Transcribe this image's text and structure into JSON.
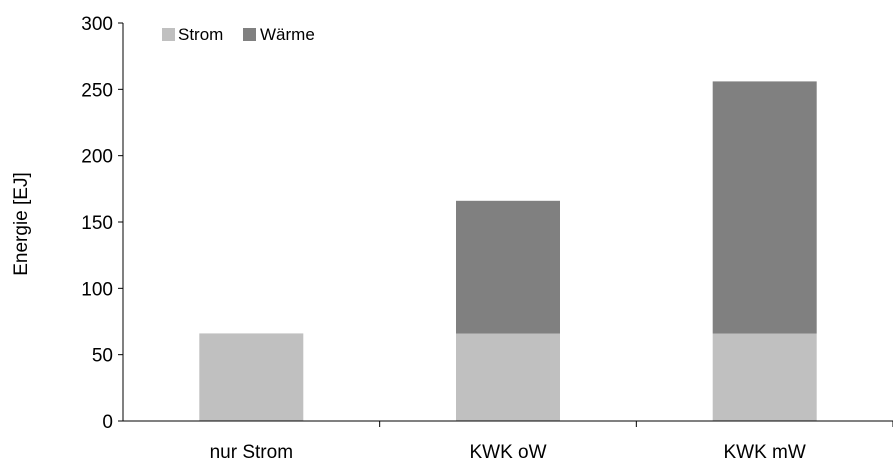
{
  "chart_data": {
    "type": "bar",
    "stacked": true,
    "categories": [
      "nur Strom",
      "KWK oW",
      "KWK mW"
    ],
    "series": [
      {
        "name": "Strom",
        "values": [
          66,
          66,
          66
        ],
        "color": "#c0c0c0"
      },
      {
        "name": "Wärme",
        "values": [
          0,
          100,
          190
        ],
        "color": "#808080"
      }
    ],
    "ylabel": "Energie [EJ]",
    "xlabel": "",
    "ylim": [
      0,
      300
    ],
    "yticks": [
      0,
      50,
      100,
      150,
      200,
      250,
      300
    ],
    "grid": false,
    "legend_position": "top-left"
  }
}
